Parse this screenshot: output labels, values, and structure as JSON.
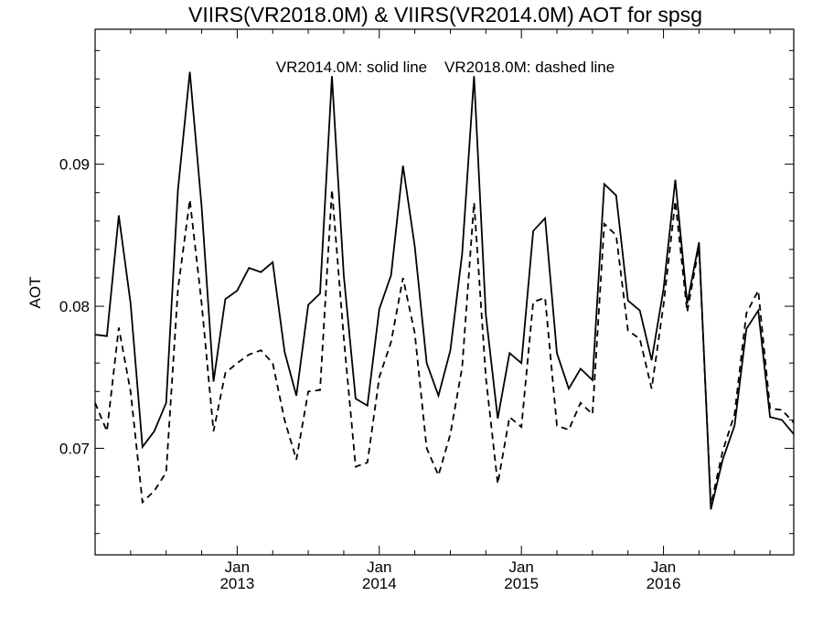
{
  "chart_data": {
    "type": "line",
    "title": "VIIRS(VR2018.0M) & VIIRS(VR2014.0M)  AOT for spsg",
    "subtitle": "VR2014.0M: solid line    VR2018.0M: dashed line",
    "xlabel": "",
    "ylabel": "AOT",
    "x_range": [
      "2012-01",
      "2016-12"
    ],
    "ylim": [
      0.0625,
      0.0995
    ],
    "y_ticks": [
      {
        "value": 0.07,
        "label": "0.07"
      },
      {
        "value": 0.08,
        "label": "0.08"
      },
      {
        "value": 0.09,
        "label": "0.09"
      }
    ],
    "x_ticks": [
      {
        "month": "2013-01",
        "label_month": "Jan",
        "label_year": "2013"
      },
      {
        "month": "2014-01",
        "label_month": "Jan",
        "label_year": "2014"
      },
      {
        "month": "2015-01",
        "label_month": "Jan",
        "label_year": "2015"
      },
      {
        "month": "2016-01",
        "label_month": "Jan",
        "label_year": "2016"
      }
    ],
    "grid": false,
    "months": [
      "2012-01",
      "2012-02",
      "2012-03",
      "2012-04",
      "2012-05",
      "2012-06",
      "2012-07",
      "2012-08",
      "2012-09",
      "2012-10",
      "2012-11",
      "2012-12",
      "2013-01",
      "2013-02",
      "2013-03",
      "2013-04",
      "2013-05",
      "2013-06",
      "2013-07",
      "2013-08",
      "2013-09",
      "2013-10",
      "2013-11",
      "2013-12",
      "2014-01",
      "2014-02",
      "2014-03",
      "2014-04",
      "2014-05",
      "2014-06",
      "2014-07",
      "2014-08",
      "2014-09",
      "2014-10",
      "2014-11",
      "2014-12",
      "2015-01",
      "2015-02",
      "2015-03",
      "2015-04",
      "2015-05",
      "2015-06",
      "2015-07",
      "2015-08",
      "2015-09",
      "2015-10",
      "2015-11",
      "2015-12",
      "2016-01",
      "2016-02",
      "2016-03",
      "2016-04",
      "2016-05",
      "2016-06",
      "2016-07",
      "2016-08",
      "2016-09",
      "2016-10",
      "2016-11",
      "2016-12"
    ],
    "series": [
      {
        "name": "VR2014.0M",
        "style": "solid",
        "values": [
          0.078,
          0.0779,
          0.0864,
          0.0802,
          0.0701,
          0.0712,
          0.0732,
          0.0882,
          0.0965,
          0.087,
          0.0747,
          0.0805,
          0.0811,
          0.0827,
          0.0824,
          0.0831,
          0.0768,
          0.0737,
          0.0801,
          0.0809,
          0.0962,
          0.0822,
          0.0735,
          0.073,
          0.0798,
          0.0822,
          0.0899,
          0.0842,
          0.076,
          0.0737,
          0.0769,
          0.0837,
          0.0962,
          0.0794,
          0.0721,
          0.0767,
          0.076,
          0.0853,
          0.0862,
          0.0767,
          0.0742,
          0.0756,
          0.0748,
          0.0886,
          0.0878,
          0.0804,
          0.0797,
          0.0762,
          0.0812,
          0.0889,
          0.0802,
          0.0845,
          0.0657,
          0.0692,
          0.0716,
          0.0784,
          0.0797,
          0.0722,
          0.072,
          0.071
        ]
      },
      {
        "name": "VR2018.0M",
        "style": "dashed",
        "values": [
          0.0732,
          0.0712,
          0.0785,
          0.074,
          0.0662,
          0.067,
          0.0683,
          0.0812,
          0.0875,
          0.0802,
          0.0712,
          0.0753,
          0.076,
          0.0766,
          0.0769,
          0.076,
          0.072,
          0.0692,
          0.074,
          0.0741,
          0.0882,
          0.0778,
          0.0687,
          0.069,
          0.075,
          0.0775,
          0.082,
          0.0781,
          0.07,
          0.0681,
          0.071,
          0.0757,
          0.0873,
          0.075,
          0.0675,
          0.0722,
          0.0715,
          0.0803,
          0.0806,
          0.0716,
          0.0713,
          0.0732,
          0.0724,
          0.0858,
          0.085,
          0.0783,
          0.0777,
          0.0742,
          0.0801,
          0.0874,
          0.0796,
          0.0842,
          0.066,
          0.0698,
          0.0724,
          0.0795,
          0.0811,
          0.0728,
          0.0727,
          0.0718
        ]
      }
    ]
  }
}
